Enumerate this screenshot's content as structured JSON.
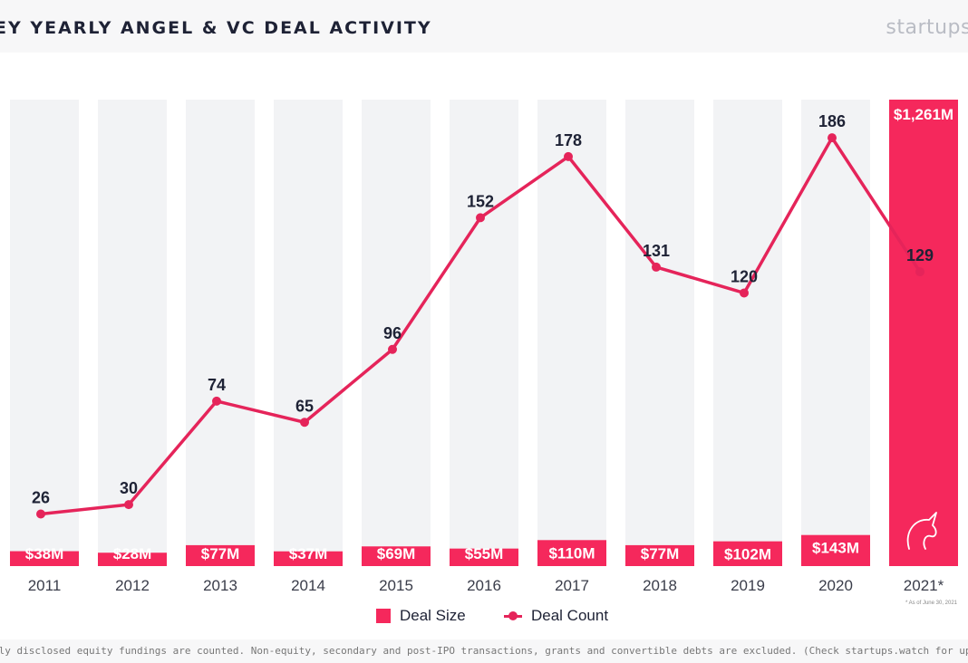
{
  "header": {
    "title": "EY YEARLY ANGEL & VC DEAL ACTIVITY",
    "brand": "startups"
  },
  "chart_data": {
    "type": "bar",
    "categories": [
      "2011",
      "2012",
      "2013",
      "2014",
      "2015",
      "2016",
      "2017",
      "2018",
      "2019",
      "2020",
      "2021*"
    ],
    "series": [
      {
        "name": "Deal Size",
        "type": "bar",
        "values": [
          38,
          28,
          77,
          37,
          69,
          55,
          110,
          77,
          102,
          143,
          1261
        ],
        "labels": [
          "$38M",
          "$28M",
          "$77M",
          "$37M",
          "$69M",
          "$55M",
          "$110M",
          "$77M",
          "$102M",
          "$143M",
          "$1,261M"
        ]
      },
      {
        "name": "Deal Count",
        "type": "line",
        "values": [
          26,
          30,
          74,
          65,
          96,
          152,
          178,
          131,
          120,
          186,
          129
        ],
        "labels": [
          "26",
          "30",
          "74",
          "65",
          "96",
          "152",
          "178",
          "131",
          "120",
          "186",
          "129"
        ]
      }
    ],
    "ylim_size": [
      0,
      1261
    ],
    "ylim_count": [
      0,
      260
    ],
    "grid": false,
    "legend": "bottom-center",
    "colors": {
      "bar": "#f5285c",
      "line": "#e5245a",
      "background_column": "#f2f3f5",
      "text": "#1e2235",
      "axis_label": "#3a3d4a"
    }
  },
  "legend": {
    "deal_size": "Deal Size",
    "deal_count": "Deal Count"
  },
  "note": "* As of June 30, 2021",
  "footer": {
    "text": "nly disclosed equity fundings are counted. Non-equity, secondary and post-IPO transactions, grants and convertible debts are excluded. (Check startups.watch for updates)"
  },
  "icons": {
    "unicorn": "unicorn-icon"
  }
}
